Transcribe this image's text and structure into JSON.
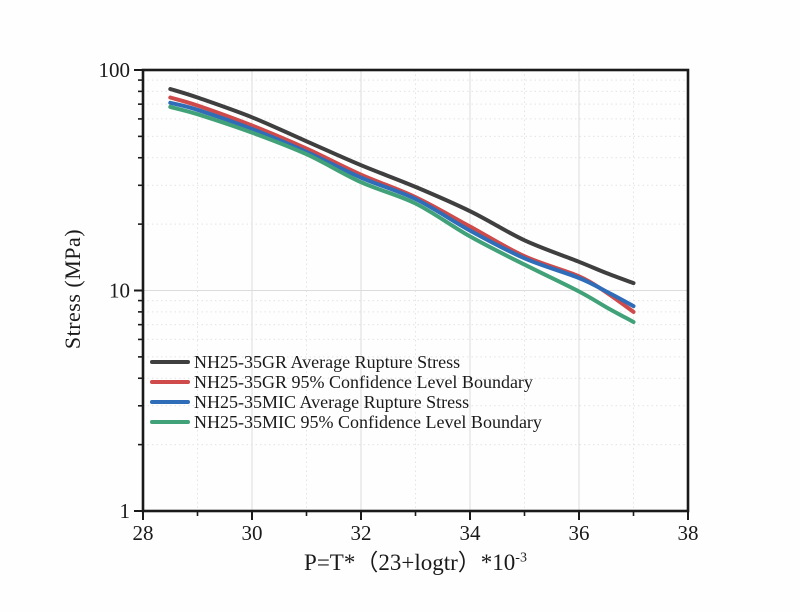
{
  "figure": {
    "background": "#fefefe",
    "axis_color": "#1a1a1a",
    "major_grid_color": "#dcdcdc",
    "minor_grid_color": "#e4e4e4"
  },
  "chart_data": {
    "type": "line",
    "title": "",
    "xlabel": "P=T*（23+logtr）*10",
    "xlabel_superscript": "-3",
    "ylabel": "Stress (MPa)",
    "xlim": [
      28,
      38
    ],
    "ylim": [
      1,
      100
    ],
    "yscale": "log10",
    "x_major_ticks": [
      28,
      30,
      32,
      34,
      36,
      38
    ],
    "x_minor_ticks": [
      29,
      31,
      33,
      35,
      37
    ],
    "y_major_ticks": [
      1,
      10,
      100
    ],
    "grid": "major solid + minor dotted, on",
    "legend_position": "inside lower-left",
    "x": [
      28.5,
      29,
      30,
      31,
      32,
      33,
      34,
      35,
      36,
      36.5,
      37
    ],
    "series": [
      {
        "name": "NH25-35GR Average Rupture Stress",
        "color": "#3f3f3f",
        "values": [
          82,
          75,
          61,
          47.5,
          37,
          29.5,
          22.9,
          16.9,
          13.5,
          12.0,
          10.8
        ]
      },
      {
        "name": "NH25-35GR 95% Confidence Level Boundary",
        "color": "#cf4a4a",
        "values": [
          75,
          69,
          56,
          44,
          33.5,
          26.5,
          19.5,
          14.3,
          11.6,
          9.8,
          8.0
        ]
      },
      {
        "name": "NH25-35MIC Average Rupture Stress",
        "color": "#2f6db8",
        "values": [
          71,
          66,
          54,
          42.5,
          32.5,
          26,
          18.7,
          14.0,
          11.4,
          9.9,
          8.5
        ]
      },
      {
        "name": "NH25-35MIC 95% Confidence Level Boundary",
        "color": "#41a178",
        "values": [
          68,
          63,
          52,
          41.5,
          31,
          24.8,
          17.6,
          13.1,
          9.9,
          8.4,
          7.2
        ]
      }
    ]
  }
}
